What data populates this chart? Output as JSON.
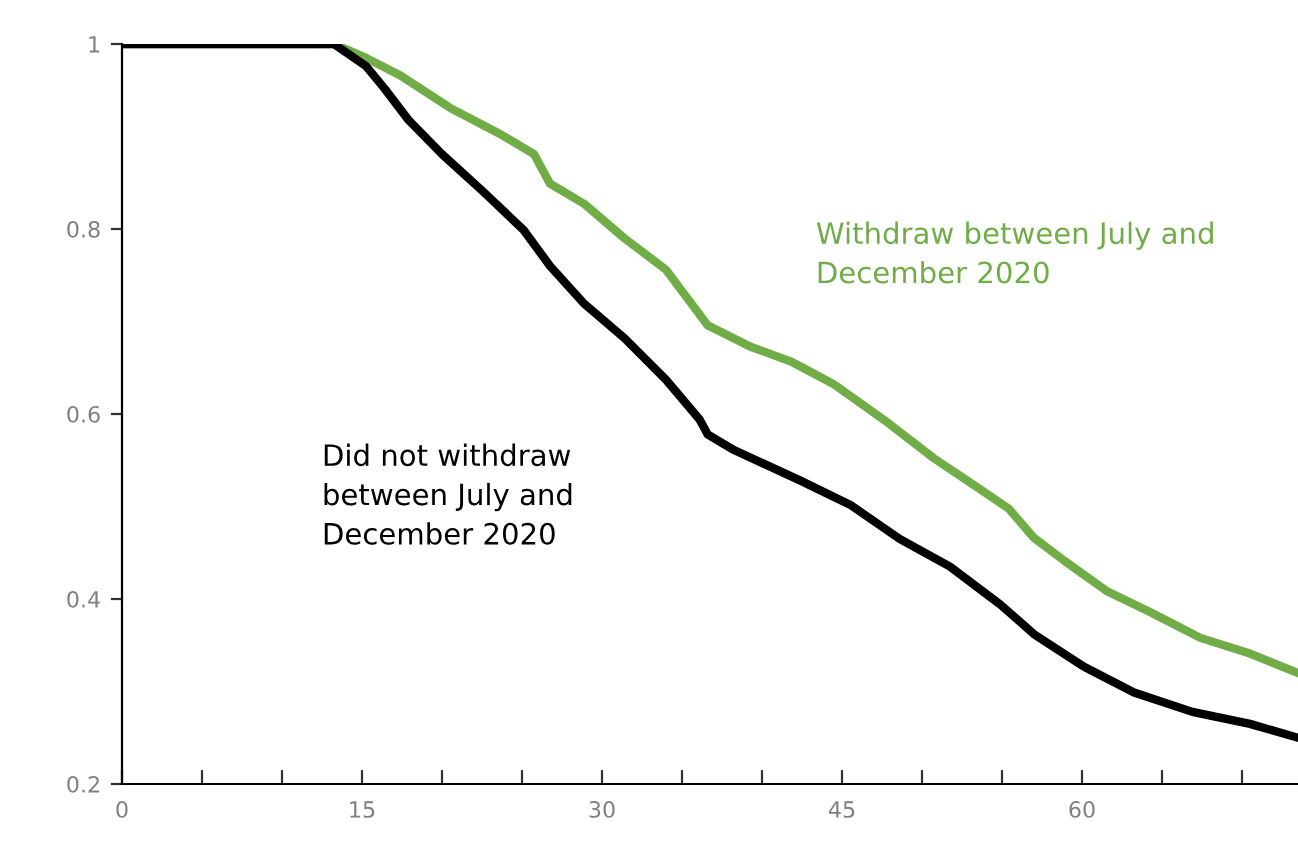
{
  "chart_data": {
    "type": "line",
    "xlim": [
      0,
      73.5
    ],
    "ylim": [
      0.2,
      1
    ],
    "xticks": [
      0,
      {
        "value": 5,
        "label": null
      },
      {
        "value": 10,
        "label": null
      },
      15,
      {
        "value": 20,
        "label": null
      },
      {
        "value": 25,
        "label": null
      },
      30,
      {
        "value": 35,
        "label": null
      },
      {
        "value": 40,
        "label": null
      },
      45,
      {
        "value": 50,
        "label": null
      },
      {
        "value": 55,
        "label": null
      },
      60,
      {
        "value": 65,
        "label": null
      },
      {
        "value": 70,
        "label": null
      }
    ],
    "yticks": [
      0.2,
      0.4,
      0.6,
      0.8,
      {
        "value": 1,
        "label": "1"
      }
    ],
    "grid": false,
    "legend": false,
    "marker": "none",
    "line_style": "solid",
    "series": [
      {
        "name": "Withdraw between July and\nDecember 2020",
        "color": "#70ad47",
        "x": [
          0,
          13.25,
          15.25,
          17.4,
          20.5,
          23.6,
          25.75,
          26.75,
          28.9,
          31.4,
          34,
          36.6,
          39.25,
          41.9,
          44.5,
          47.6,
          50.75,
          52.75,
          55.4,
          57,
          59,
          61.6,
          64.25,
          67.4,
          70.5,
          73.5
        ],
        "values": [
          1,
          1,
          0.985,
          0.966,
          0.931,
          0.903,
          0.881,
          0.849,
          0.827,
          0.79,
          0.756,
          0.696,
          0.673,
          0.656,
          0.632,
          0.594,
          0.552,
          0.529,
          0.498,
          0.466,
          0.44,
          0.408,
          0.386,
          0.358,
          0.341,
          0.32
        ]
      },
      {
        "name": "Did not withdraw\nbetween July and\nDecember 2020",
        "color": "#000000",
        "x": [
          0,
          13.25,
          15.25,
          16.4,
          17.9,
          20,
          22.6,
          25.1,
          26.75,
          28.9,
          31.4,
          34,
          36.1,
          36.6,
          38.25,
          42.4,
          45.5,
          48.6,
          51.75,
          54.9,
          57,
          60.1,
          63.25,
          66.9,
          70.5,
          73.5
        ],
        "values": [
          1,
          1,
          0.976,
          0.952,
          0.918,
          0.881,
          0.84,
          0.799,
          0.76,
          0.719,
          0.682,
          0.637,
          0.594,
          0.578,
          0.561,
          0.528,
          0.502,
          0.465,
          0.435,
          0.394,
          0.362,
          0.327,
          0.299,
          0.278,
          0.265,
          0.25
        ]
      }
    ]
  }
}
